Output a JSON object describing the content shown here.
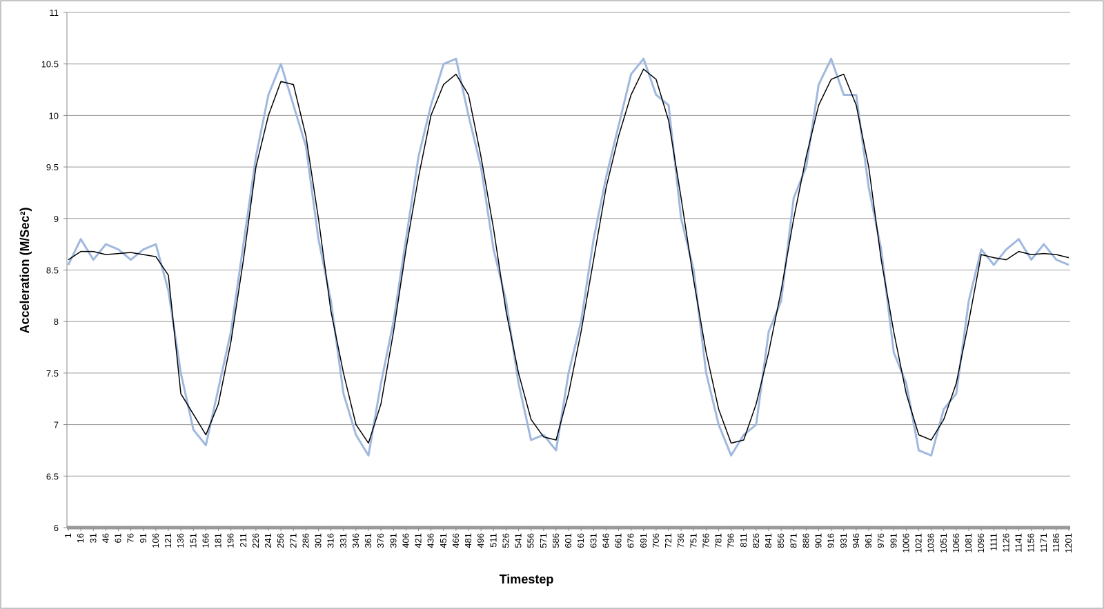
{
  "chart_data": {
    "type": "line",
    "x_label": "Timestep",
    "y_label": "Acceleration (M/Sec²)",
    "xlim": [
      1,
      1201
    ],
    "ylim": [
      6,
      11
    ],
    "yticks": [
      6,
      6.5,
      7,
      7.5,
      8,
      8.5,
      9,
      9.5,
      10,
      10.5,
      11
    ],
    "xticks": [
      1,
      16,
      31,
      46,
      61,
      76,
      91,
      106,
      121,
      136,
      151,
      166,
      181,
      196,
      211,
      226,
      241,
      256,
      271,
      286,
      301,
      316,
      331,
      346,
      361,
      376,
      391,
      406,
      421,
      436,
      451,
      466,
      481,
      496,
      511,
      526,
      541,
      556,
      571,
      586,
      601,
      616,
      631,
      646,
      661,
      676,
      691,
      706,
      721,
      736,
      751,
      766,
      781,
      796,
      811,
      826,
      841,
      856,
      871,
      886,
      901,
      916,
      931,
      946,
      961,
      976,
      991,
      1006,
      1021,
      1036,
      1051,
      1066,
      1081,
      1096,
      1111,
      1126,
      1141,
      1156,
      1171,
      1186,
      1201
    ],
    "grid": true,
    "x": [
      1,
      16,
      31,
      46,
      61,
      76,
      91,
      106,
      121,
      136,
      151,
      166,
      181,
      196,
      211,
      226,
      241,
      256,
      271,
      286,
      301,
      316,
      331,
      346,
      361,
      376,
      391,
      406,
      421,
      436,
      451,
      466,
      481,
      496,
      511,
      526,
      541,
      556,
      571,
      586,
      601,
      616,
      631,
      646,
      661,
      676,
      691,
      706,
      721,
      736,
      751,
      766,
      781,
      796,
      811,
      826,
      841,
      856,
      871,
      886,
      901,
      916,
      931,
      946,
      961,
      976,
      991,
      1006,
      1021,
      1036,
      1051,
      1066,
      1081,
      1096,
      1111,
      1126,
      1141,
      1156,
      1171,
      1186,
      1201
    ],
    "series": [
      {
        "color": "#9fb8df",
        "values": [
          8.55,
          8.8,
          8.6,
          8.75,
          8.7,
          8.6,
          8.7,
          8.75,
          8.3,
          7.5,
          6.95,
          6.8,
          7.35,
          7.9,
          8.75,
          9.6,
          10.2,
          10.5,
          10.1,
          9.7,
          8.8,
          8.2,
          7.3,
          6.9,
          6.7,
          7.4,
          8.0,
          8.8,
          9.6,
          10.1,
          10.5,
          10.55,
          10.0,
          9.5,
          8.7,
          8.2,
          7.4,
          6.85,
          6.9,
          6.75,
          7.5,
          8.0,
          8.8,
          9.4,
          9.9,
          10.4,
          10.55,
          10.2,
          10.1,
          9.0,
          8.5,
          7.5,
          7.0,
          6.7,
          6.9,
          7.0,
          7.9,
          8.2,
          9.2,
          9.5,
          10.3,
          10.55,
          10.2,
          10.2,
          9.3,
          8.7,
          7.7,
          7.4,
          6.75,
          6.7,
          7.15,
          7.3,
          8.2,
          8.7,
          8.55,
          8.7,
          8.8,
          8.6,
          8.75,
          8.6,
          8.55
        ]
      },
      {
        "color": "#000000",
        "values": [
          8.6,
          8.68,
          8.68,
          8.65,
          8.66,
          8.67,
          8.65,
          8.63,
          8.45,
          7.3,
          7.1,
          6.9,
          7.2,
          7.8,
          8.6,
          9.5,
          10.0,
          10.33,
          10.3,
          9.8,
          9.0,
          8.1,
          7.5,
          7.0,
          6.82,
          7.2,
          7.9,
          8.7,
          9.4,
          10.0,
          10.3,
          10.4,
          10.2,
          9.6,
          8.9,
          8.1,
          7.5,
          7.05,
          6.88,
          6.85,
          7.3,
          7.9,
          8.6,
          9.3,
          9.8,
          10.2,
          10.45,
          10.35,
          9.95,
          9.2,
          8.4,
          7.7,
          7.15,
          6.82,
          6.85,
          7.2,
          7.7,
          8.3,
          9.0,
          9.6,
          10.1,
          10.35,
          10.4,
          10.1,
          9.5,
          8.6,
          7.9,
          7.3,
          6.9,
          6.85,
          7.05,
          7.4,
          8.0,
          8.65,
          8.62,
          8.6,
          8.68,
          8.65,
          8.66,
          8.65,
          8.62
        ]
      }
    ]
  }
}
